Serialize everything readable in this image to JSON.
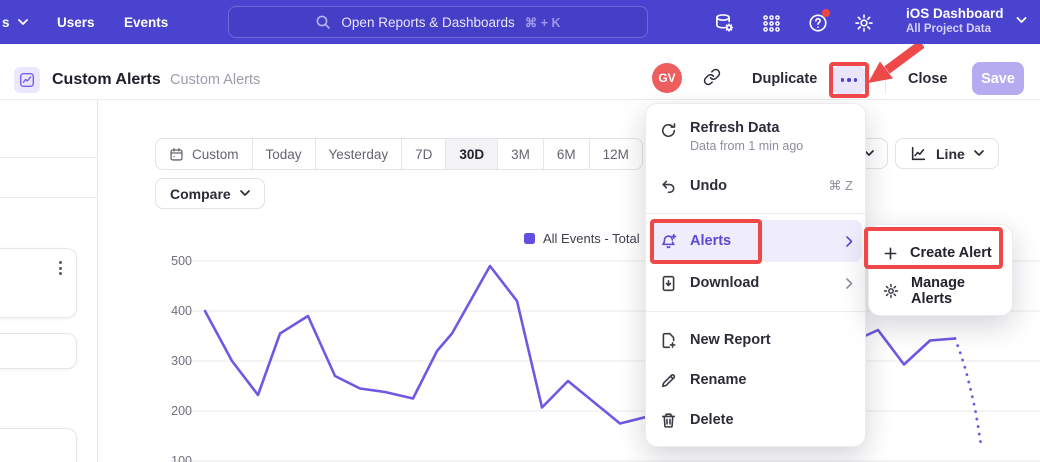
{
  "topnav": {
    "partial_item": "s",
    "items": [
      "Users",
      "Events"
    ],
    "search": {
      "placeholder": "Open Reports & Dashboards",
      "shortcut": "⌘ + K"
    },
    "icons": [
      "data-management-icon",
      "apps-grid-icon",
      "help-icon",
      "settings-icon"
    ],
    "project": {
      "name": "iOS Dashboard",
      "scope": "All Project Data"
    }
  },
  "header": {
    "title": "Custom Alerts",
    "breadcrumb": "Custom Alerts",
    "avatar": "GV",
    "duplicate_label": "Duplicate",
    "close_label": "Close",
    "save_label": "Save",
    "icons": [
      "insights-report-icon",
      "copy-link-icon",
      "more-ellipsis-icon"
    ]
  },
  "toolbar": {
    "date_ranges": [
      "Custom",
      "Today",
      "Yesterday",
      "7D",
      "30D",
      "3M",
      "6M",
      "12M"
    ],
    "active_range": "30D",
    "compare_label": "Compare",
    "chart_type_label": "Line"
  },
  "menu": {
    "items": [
      {
        "label": "Refresh Data",
        "sublabel": "Data from 1 min ago",
        "icon": "refresh-icon"
      },
      {
        "label": "Undo",
        "shortcut": "⌘ Z",
        "icon": "undo-icon"
      },
      {
        "label": "Alerts",
        "icon": "alert-bell-plus-icon",
        "has_submenu": true,
        "highlighted": true
      },
      {
        "label": "Download",
        "icon": "download-icon",
        "has_submenu": true
      },
      {
        "label": "New Report",
        "icon": "new-report-icon"
      },
      {
        "label": "Rename",
        "icon": "pencil-icon"
      },
      {
        "label": "Delete",
        "icon": "trash-icon"
      }
    ]
  },
  "submenu": {
    "items": [
      {
        "label": "Create Alert",
        "icon": "plus-icon"
      },
      {
        "label": "Manage Alerts",
        "icon": "gear-icon"
      }
    ]
  },
  "annotations": {
    "highlight_color": "#ee4848",
    "targets": [
      "more-ellipsis-button",
      "alerts-menu-item",
      "create-alert-item"
    ]
  },
  "chart_data": {
    "type": "line",
    "title": "",
    "xlabel": "",
    "ylabel": "",
    "yticks": [
      500,
      400,
      300,
      200,
      100
    ],
    "ylim": [
      100,
      500
    ],
    "grid": true,
    "legend_position": "top",
    "legend": [
      {
        "name": "All Events - Total",
        "color": "#6150dd"
      }
    ],
    "line_color": "#7157e2",
    "x_unit": "px",
    "solid_points": [
      [
        205,
        400
      ],
      [
        232,
        300
      ],
      [
        258,
        232
      ],
      [
        280,
        355
      ],
      [
        308,
        390
      ],
      [
        335,
        270
      ],
      [
        360,
        245
      ],
      [
        385,
        238
      ],
      [
        413,
        225
      ],
      [
        437,
        320
      ],
      [
        452,
        355
      ],
      [
        490,
        490
      ],
      [
        517,
        420
      ],
      [
        542,
        207
      ],
      [
        568,
        260
      ],
      [
        620,
        175
      ],
      [
        650,
        190
      ],
      [
        700,
        225
      ],
      [
        780,
        285
      ],
      [
        865,
        350
      ],
      [
        878,
        362
      ],
      [
        904,
        293
      ],
      [
        930,
        341
      ],
      [
        955,
        345
      ]
    ],
    "dotted_points": [
      [
        955,
        345
      ],
      [
        960,
        318
      ],
      [
        966,
        280
      ],
      [
        971,
        240
      ],
      [
        975,
        205
      ],
      [
        978,
        170
      ],
      [
        981,
        132
      ]
    ]
  }
}
